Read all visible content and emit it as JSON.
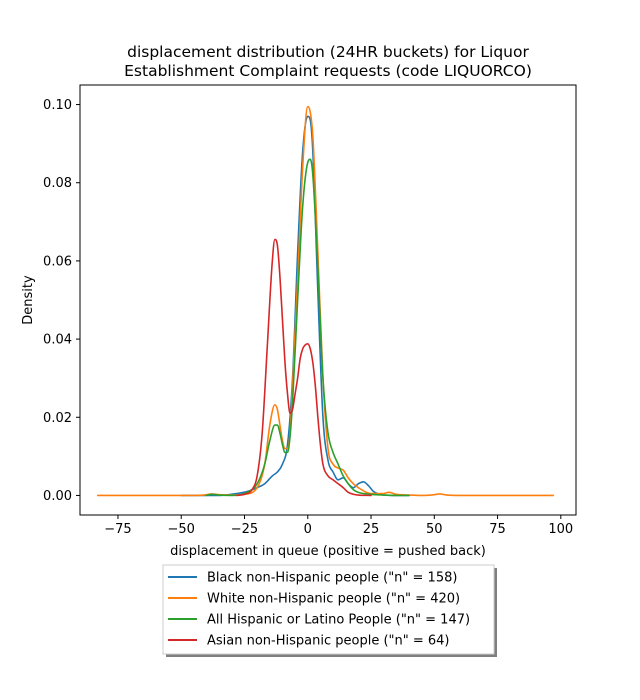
{
  "chart_data": {
    "type": "line",
    "title_line1": "displacement distribution (24HR buckets) for Liquor",
    "title_line2": "Establishment Complaint requests (code LIQUORCO)",
    "xlabel": "displacement in queue (positive = pushed back)",
    "ylabel": "Density",
    "xlim": [
      -90,
      106
    ],
    "ylim": [
      -0.005,
      0.105
    ],
    "x_ticks": [
      -75,
      -50,
      -25,
      0,
      25,
      50,
      75,
      100
    ],
    "y_ticks": [
      0.0,
      0.02,
      0.04,
      0.06,
      0.08,
      0.1
    ],
    "x_tick_labels": [
      "−75",
      "−50",
      "−25",
      "0",
      "25",
      "50",
      "75",
      "100"
    ],
    "y_tick_labels": [
      "0.00",
      "0.02",
      "0.04",
      "0.06",
      "0.08",
      "0.10"
    ],
    "legend_position": "bottom-center-outside",
    "series": [
      {
        "name": "Black non-Hispanic people (\"n\" = 158)",
        "color": "#1f77b4",
        "x": [
          -50,
          -35,
          -28,
          -24,
          -20,
          -17,
          -14,
          -12,
          -10,
          -8,
          -6,
          -4,
          -2,
          0,
          1,
          2,
          4,
          6,
          8,
          10,
          12,
          14,
          16,
          18,
          20,
          22,
          24,
          26,
          28,
          30,
          35,
          40
        ],
        "y": [
          0.0,
          0.0,
          0.0005,
          0.001,
          0.002,
          0.003,
          0.005,
          0.006,
          0.008,
          0.013,
          0.03,
          0.062,
          0.088,
          0.097,
          0.096,
          0.088,
          0.052,
          0.02,
          0.009,
          0.006,
          0.004,
          0.0045,
          0.003,
          0.002,
          0.003,
          0.0035,
          0.0025,
          0.001,
          0.0004,
          0.0001,
          0.0,
          0.0
        ]
      },
      {
        "name": "White non-Hispanic people (\"n\" = 420)",
        "color": "#ff7f0e",
        "x": [
          -83,
          -60,
          -45,
          -40,
          -38,
          -35,
          -30,
          -25,
          -20,
          -17,
          -15,
          -13,
          -12,
          -11,
          -10,
          -9,
          -8,
          -7,
          -6,
          -4,
          -2,
          0,
          1,
          2,
          4,
          6,
          8,
          10,
          12,
          14,
          16,
          18,
          20,
          25,
          30,
          32,
          35,
          40,
          45,
          50,
          52,
          55,
          60,
          70,
          97
        ],
        "y": [
          0.0,
          0.0,
          0.0,
          0.0002,
          0.0004,
          0.0002,
          0.0001,
          0.0003,
          0.002,
          0.008,
          0.018,
          0.0232,
          0.022,
          0.018,
          0.014,
          0.012,
          0.012,
          0.016,
          0.028,
          0.055,
          0.084,
          0.0995,
          0.098,
          0.092,
          0.062,
          0.03,
          0.012,
          0.008,
          0.007,
          0.0065,
          0.0045,
          0.003,
          0.002,
          0.0005,
          0.0005,
          0.0008,
          0.0003,
          0.0001,
          0.0,
          0.0002,
          0.0004,
          0.0001,
          0.0,
          0.0,
          0.0
        ]
      },
      {
        "name": "All Hispanic or Latino People (\"n\" = 147)",
        "color": "#2ca02c",
        "x": [
          -40,
          -38,
          -35,
          -30,
          -25,
          -20,
          -17,
          -15,
          -13,
          -12,
          -11,
          -10,
          -9,
          -8,
          -7,
          -6,
          -4,
          -2,
          0,
          1,
          2,
          4,
          6,
          8,
          10,
          12,
          14,
          16,
          18,
          20,
          25,
          30,
          35,
          40
        ],
        "y": [
          0.0,
          0.0003,
          0.0001,
          0.0,
          0.0005,
          0.003,
          0.008,
          0.014,
          0.018,
          0.018,
          0.016,
          0.013,
          0.011,
          0.011,
          0.015,
          0.024,
          0.05,
          0.074,
          0.0852,
          0.086,
          0.082,
          0.058,
          0.03,
          0.016,
          0.011,
          0.008,
          0.005,
          0.003,
          0.0015,
          0.0008,
          0.0003,
          0.0001,
          0.0,
          0.0
        ]
      },
      {
        "name": "Asian non-Hispanic people (\"n\" = 64)",
        "color": "#d62728",
        "x": [
          -28,
          -25,
          -22,
          -20,
          -18,
          -16,
          -14,
          -13,
          -12,
          -11,
          -10,
          -9,
          -8,
          -7,
          -6,
          -5,
          -4,
          -3,
          -2,
          -1,
          0,
          1,
          2,
          3,
          4,
          5,
          6,
          8,
          10,
          12,
          14,
          16,
          18,
          20,
          25
        ],
        "y": [
          0.0,
          0.0003,
          0.0015,
          0.005,
          0.016,
          0.038,
          0.06,
          0.0655,
          0.064,
          0.056,
          0.045,
          0.034,
          0.026,
          0.021,
          0.022,
          0.026,
          0.03,
          0.035,
          0.0375,
          0.0385,
          0.0388,
          0.0375,
          0.034,
          0.028,
          0.02,
          0.013,
          0.008,
          0.005,
          0.004,
          0.003,
          0.002,
          0.0008,
          0.0003,
          0.0001,
          0.0
        ]
      }
    ]
  }
}
